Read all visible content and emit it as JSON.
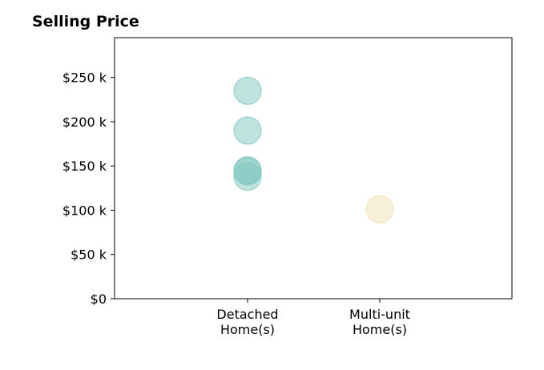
{
  "chart_data": {
    "type": "scatter",
    "title": "Selling Price",
    "xlabel": "",
    "ylabel": "",
    "categories": [
      "Detached\nHome(s)",
      "Multi-unit\nHome(s)"
    ],
    "ylim": [
      0,
      295000
    ],
    "yticks": [
      {
        "value": 0,
        "label": "$0"
      },
      {
        "value": 50000,
        "label": "$50 k"
      },
      {
        "value": 100000,
        "label": "$100 k"
      },
      {
        "value": 150000,
        "label": "$150 k"
      },
      {
        "value": 200000,
        "label": "$200 k"
      },
      {
        "value": 250000,
        "label": "$250 k"
      }
    ],
    "grid": false,
    "series": [
      {
        "category": "Detached\nHome(s)",
        "color": "#7ec8bf",
        "values": [
          235000,
          190000,
          145000,
          144000,
          138000
        ]
      },
      {
        "category": "Multi-unit\nHome(s)",
        "color": "#f3e1b6",
        "values": [
          101000
        ]
      }
    ]
  }
}
